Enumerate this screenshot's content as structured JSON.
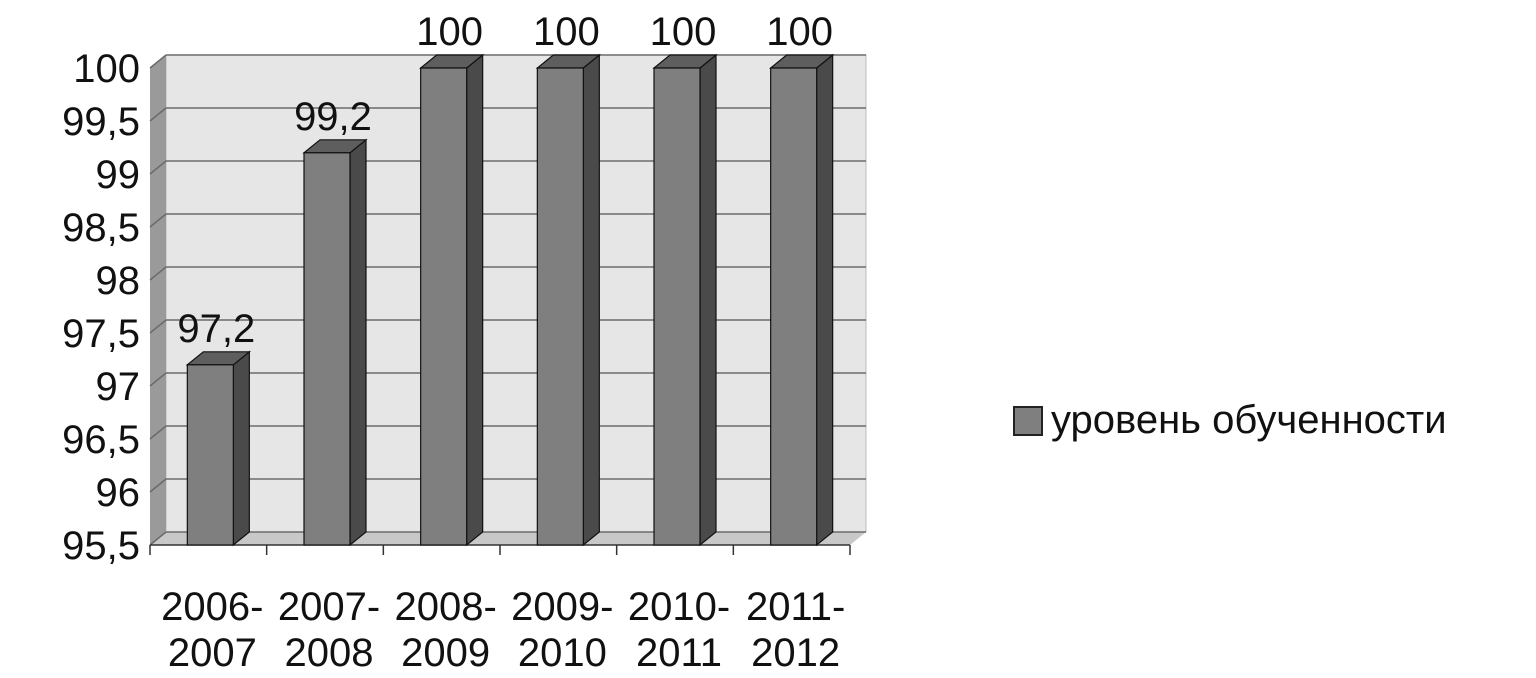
{
  "chart_data": {
    "type": "bar",
    "categories": [
      "2006-2007",
      "2007-2008",
      "2008-2009",
      "2009-2010",
      "2010-2011",
      "2011-2012"
    ],
    "category_lines": [
      [
        "2006-",
        "2007"
      ],
      [
        "2007-",
        "2008"
      ],
      [
        "2008-",
        "2009"
      ],
      [
        "2009-",
        "2010"
      ],
      [
        "2010-",
        "2011"
      ],
      [
        "2011-",
        "2012"
      ]
    ],
    "series": [
      {
        "name": "уровень обученности",
        "values": [
          97.2,
          99.2,
          100,
          100,
          100,
          100
        ]
      }
    ],
    "data_labels": [
      "97,2",
      "99,2",
      "100",
      "100",
      "100",
      "100"
    ],
    "yticks": [
      95.5,
      96,
      96.5,
      97,
      97.5,
      98,
      98.5,
      99,
      99.5,
      100
    ],
    "ytick_labels": [
      "95,5",
      "96",
      "96,5",
      "97",
      "97,5",
      "98",
      "98,5",
      "99",
      "99,5",
      "100"
    ],
    "ylim": [
      95.5,
      100
    ],
    "grid": true,
    "style": "3d-column",
    "legend_position": "right",
    "colors": {
      "bar_front": "#7f7f7f",
      "bar_side": "#4a4a4a",
      "bar_top": "#5e5e5e",
      "wall": "#e6e6e6",
      "outline": "#111111"
    }
  },
  "legend": {
    "label": "уровень обученности"
  }
}
